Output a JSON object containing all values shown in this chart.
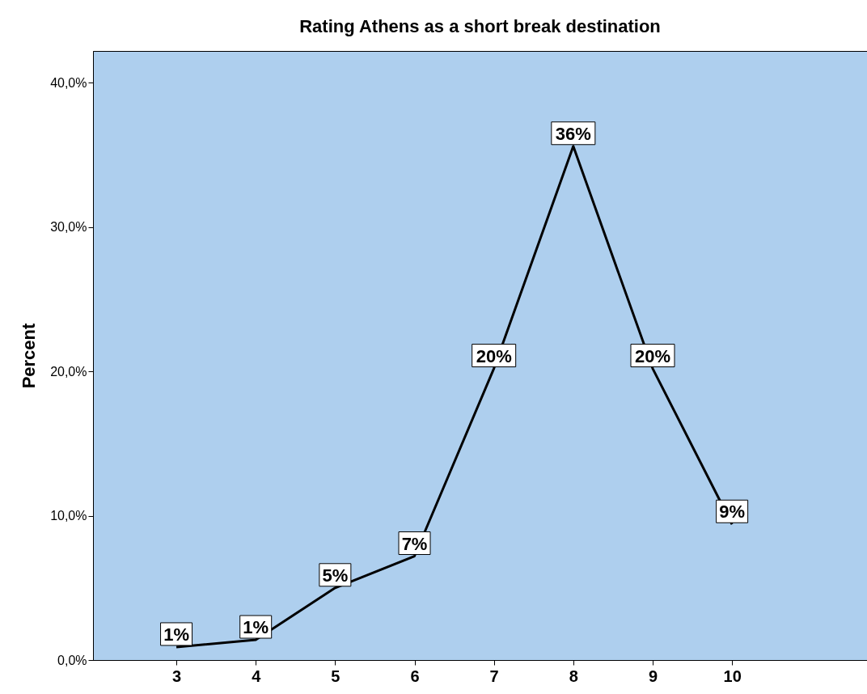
{
  "chart_data": {
    "type": "line",
    "title": "Rating Athens as a short break destination",
    "ylabel": "Percent",
    "x": [
      3,
      4,
      5,
      6,
      7,
      8,
      9,
      10
    ],
    "series": [
      {
        "color": "#000000",
        "values": [
          0.9,
          1.4,
          5.0,
          7.2,
          20.2,
          35.6,
          20.2,
          9.4
        ],
        "value_labels": [
          "1%",
          "1%",
          "5%",
          "7%",
          "20%",
          "36%",
          "20%",
          "9%"
        ]
      }
    ],
    "xlim": [
      1.95,
      11.7
    ],
    "xticks": [
      3,
      4,
      5,
      6,
      7,
      8,
      9,
      10
    ],
    "ylim": [
      0,
      42.2
    ],
    "yticks": [
      {
        "value": 0,
        "label": "0,0%"
      },
      {
        "value": 10,
        "label": "10,0%"
      },
      {
        "value": 20,
        "label": "20,0%"
      },
      {
        "value": 30,
        "label": "30,0%"
      },
      {
        "value": 40,
        "label": "40,0%"
      }
    ],
    "line_style": "solid"
  }
}
